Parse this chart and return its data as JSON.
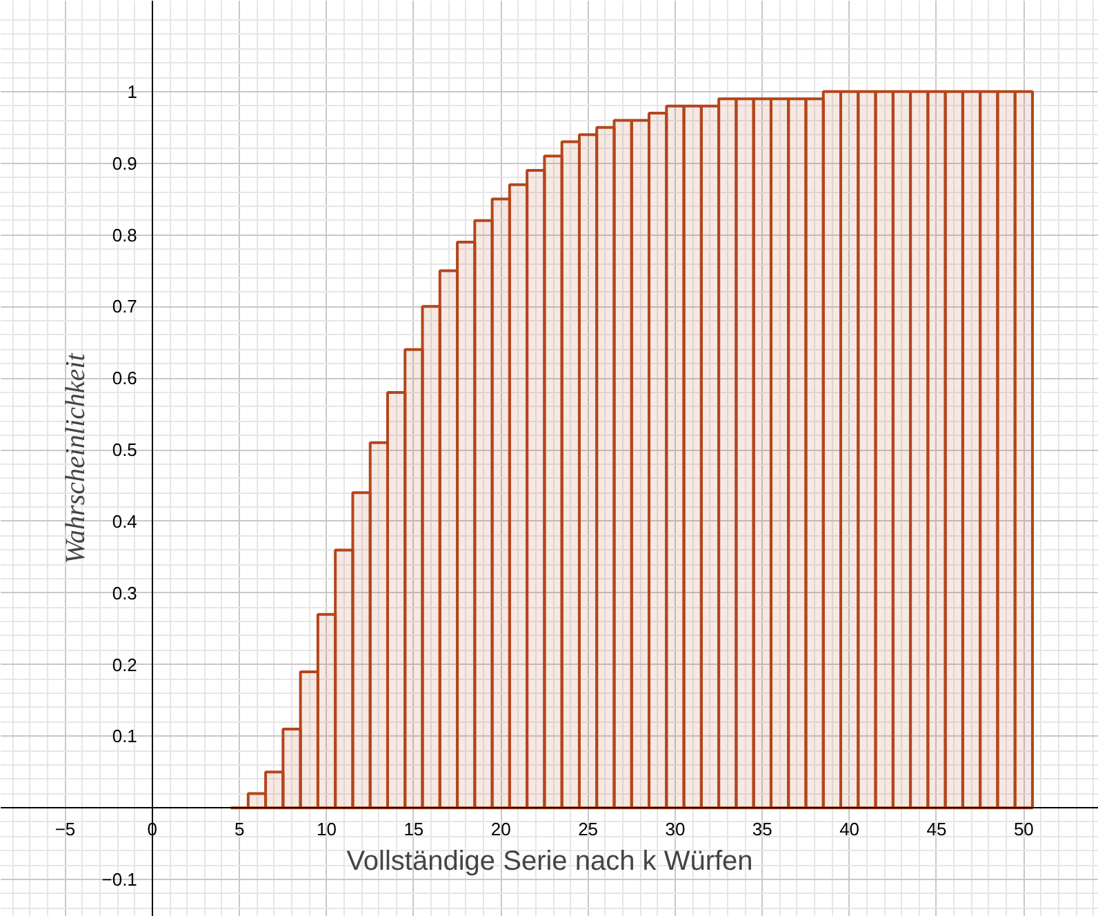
{
  "chart_data": {
    "type": "bar",
    "xlabel": "Vollständige Serie nach k Würfen",
    "ylabel": "Wahrscheinlichkeit",
    "x": [
      5,
      6,
      7,
      8,
      9,
      10,
      11,
      12,
      13,
      14,
      15,
      16,
      17,
      18,
      19,
      20,
      21,
      22,
      23,
      24,
      25,
      26,
      27,
      28,
      29,
      30,
      31,
      32,
      33,
      34,
      35,
      36,
      37,
      38,
      39,
      40,
      41,
      42,
      43,
      44,
      45,
      46,
      47,
      48,
      49,
      50
    ],
    "values": [
      0,
      0.02,
      0.05,
      0.11,
      0.19,
      0.27,
      0.36,
      0.44,
      0.51,
      0.58,
      0.64,
      0.7,
      0.75,
      0.79,
      0.82,
      0.85,
      0.87,
      0.89,
      0.91,
      0.93,
      0.94,
      0.95,
      0.96,
      0.96,
      0.97,
      0.98,
      0.98,
      0.98,
      0.99,
      0.99,
      0.99,
      0.99,
      0.99,
      0.99,
      1.0,
      1.0,
      1.0,
      1.0,
      1.0,
      1.0,
      1.0,
      1.0,
      1.0,
      1.0,
      1.0,
      1.0
    ],
    "color": "#b5451b",
    "xlim": [
      -8.7,
      54.3
    ],
    "ylim": [
      -0.152,
      1.127
    ],
    "xticks": [
      -5,
      0,
      5,
      10,
      15,
      20,
      25,
      30,
      35,
      40,
      45,
      50
    ],
    "yticks": [
      -0.1,
      0.1,
      0.2,
      0.3,
      0.4,
      0.5,
      0.6,
      0.7,
      0.8,
      0.9,
      1
    ],
    "grid": true
  }
}
